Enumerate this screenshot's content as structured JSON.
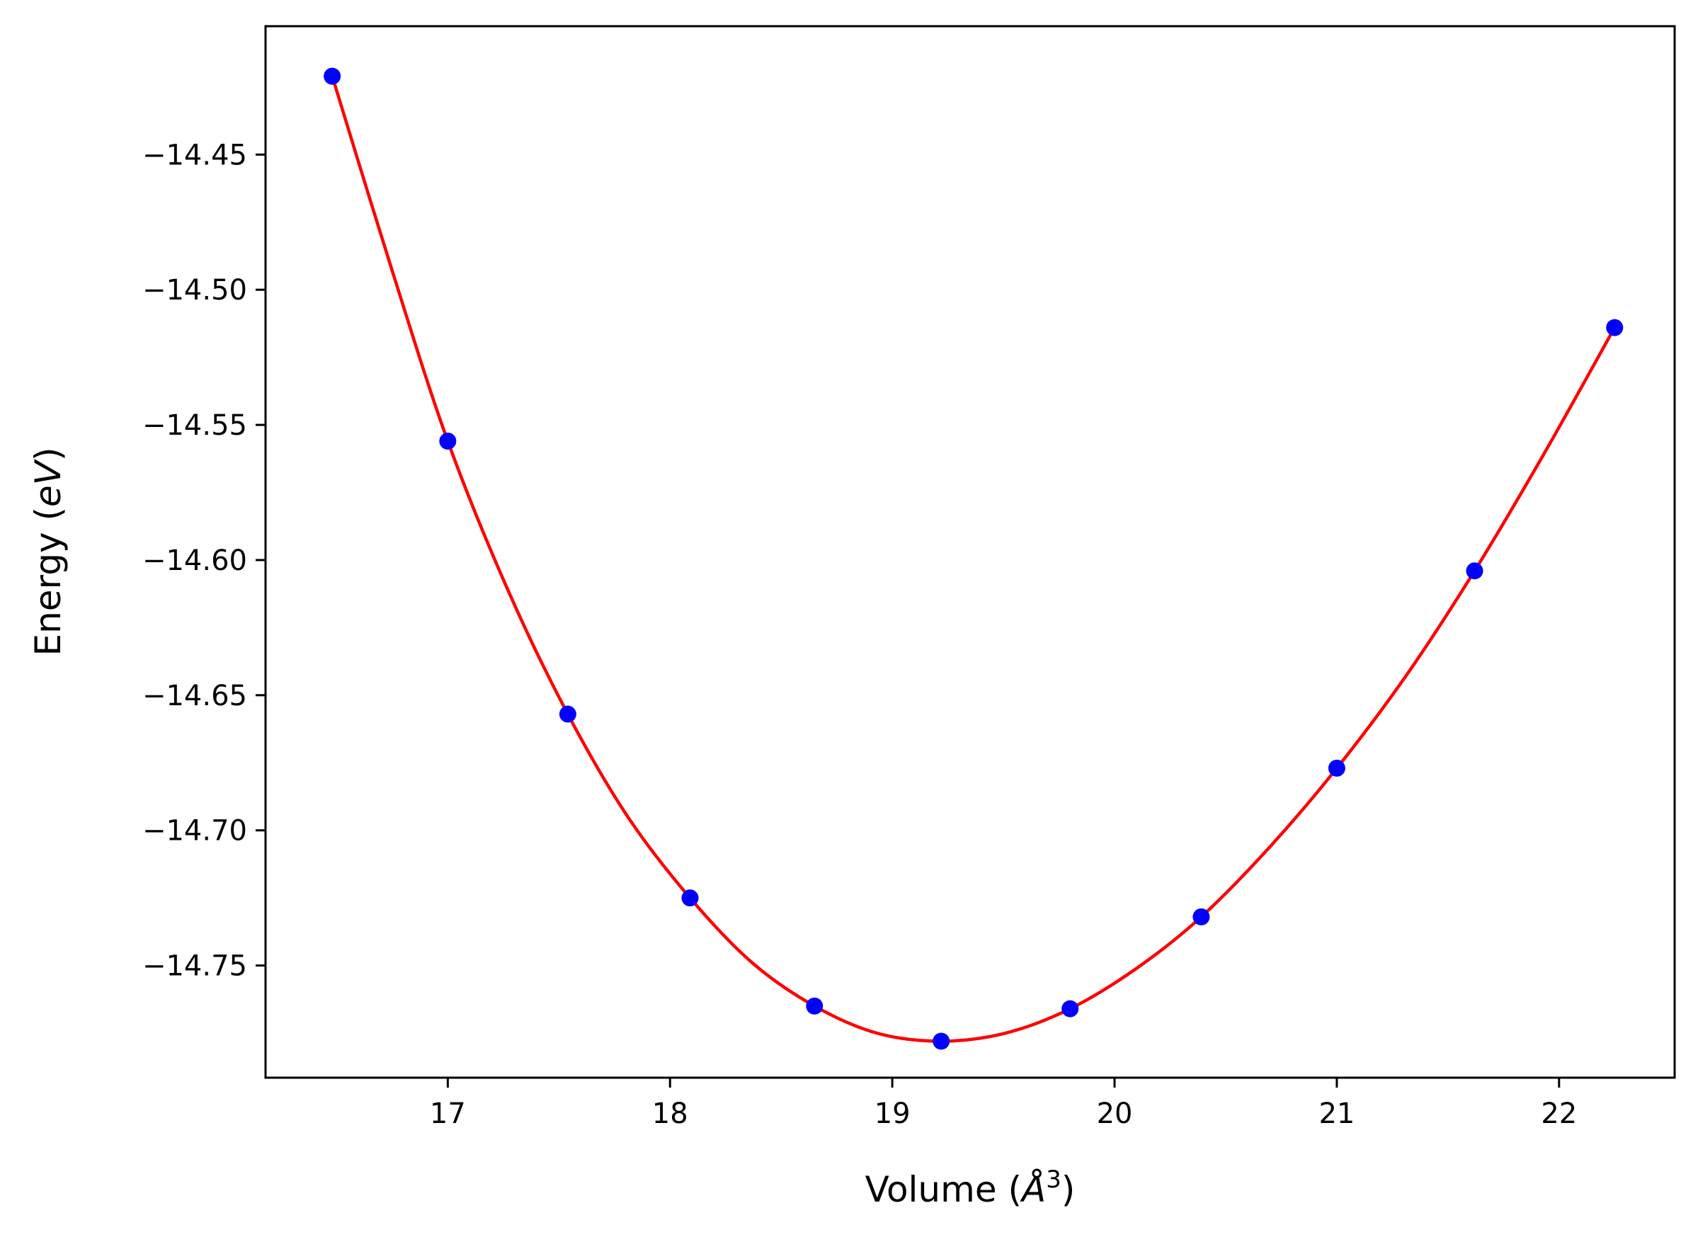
{
  "chart_data": {
    "type": "scatter",
    "xlabel": "Volume (Å³)",
    "xlabel_parts": {
      "prefix": "Volume (",
      "symbol": "Å",
      "superscript": "3",
      "suffix": ")"
    },
    "ylabel": "Energy (eV)",
    "ylabel_parts": {
      "prefix": "Energy (",
      "unit": "eV",
      "suffix": ")"
    },
    "xlim": [
      16.18,
      22.52
    ],
    "ylim": [
      -14.7915,
      -14.4025
    ],
    "x_ticks": [
      17,
      18,
      19,
      20,
      21,
      22
    ],
    "x_tick_labels": [
      "17",
      "18",
      "19",
      "20",
      "21",
      "22"
    ],
    "y_ticks": [
      -14.75,
      -14.7,
      -14.65,
      -14.6,
      -14.55,
      -14.5,
      -14.45
    ],
    "y_tick_labels": [
      "−14.75",
      "−14.70",
      "−14.65",
      "−14.60",
      "−14.55",
      "−14.50",
      "−14.45"
    ],
    "grid": false,
    "series": [
      {
        "kind": "points",
        "color": "#0000ff",
        "x": [
          16.48,
          17.0,
          17.54,
          18.09,
          18.65,
          19.22,
          19.8,
          20.39,
          21.0,
          21.62,
          22.25
        ],
        "y": [
          -14.421,
          -14.556,
          -14.657,
          -14.725,
          -14.765,
          -14.778,
          -14.766,
          -14.732,
          -14.677,
          -14.604,
          -14.514
        ]
      },
      {
        "kind": "fit-curve",
        "color": "#ff0000",
        "x": [
          16.48,
          16.75,
          17.0,
          17.27,
          17.54,
          17.81,
          18.09,
          18.37,
          18.65,
          18.93,
          19.22,
          19.51,
          19.8,
          20.1,
          20.39,
          20.7,
          21.0,
          21.31,
          21.62,
          21.93,
          22.25
        ],
        "y": [
          -14.421,
          -14.493,
          -14.556,
          -14.611,
          -14.657,
          -14.695,
          -14.725,
          -14.749,
          -14.765,
          -14.775,
          -14.778,
          -14.775,
          -14.766,
          -14.751,
          -14.732,
          -14.706,
          -14.677,
          -14.643,
          -14.604,
          -14.561,
          -14.514
        ]
      }
    ]
  }
}
